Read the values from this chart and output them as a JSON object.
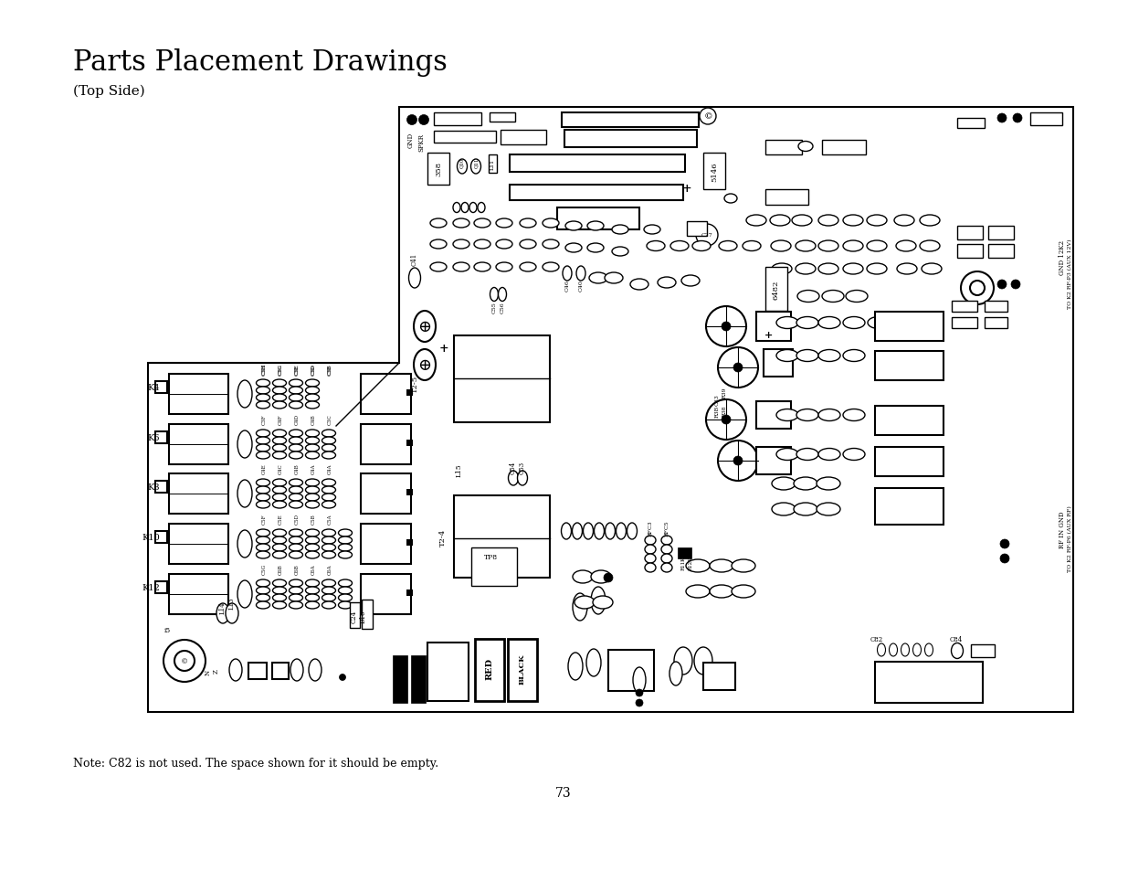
{
  "title": "Parts Placement Drawings",
  "subtitle": "(Top Side)",
  "note": "Note: C82 is not used. The space shown for it should be empty.",
  "page_number": "73",
  "bg_color": "#ffffff",
  "title_fontsize": 22,
  "subtitle_fontsize": 11,
  "note_fontsize": 9,
  "page_number_fontsize": 10
}
